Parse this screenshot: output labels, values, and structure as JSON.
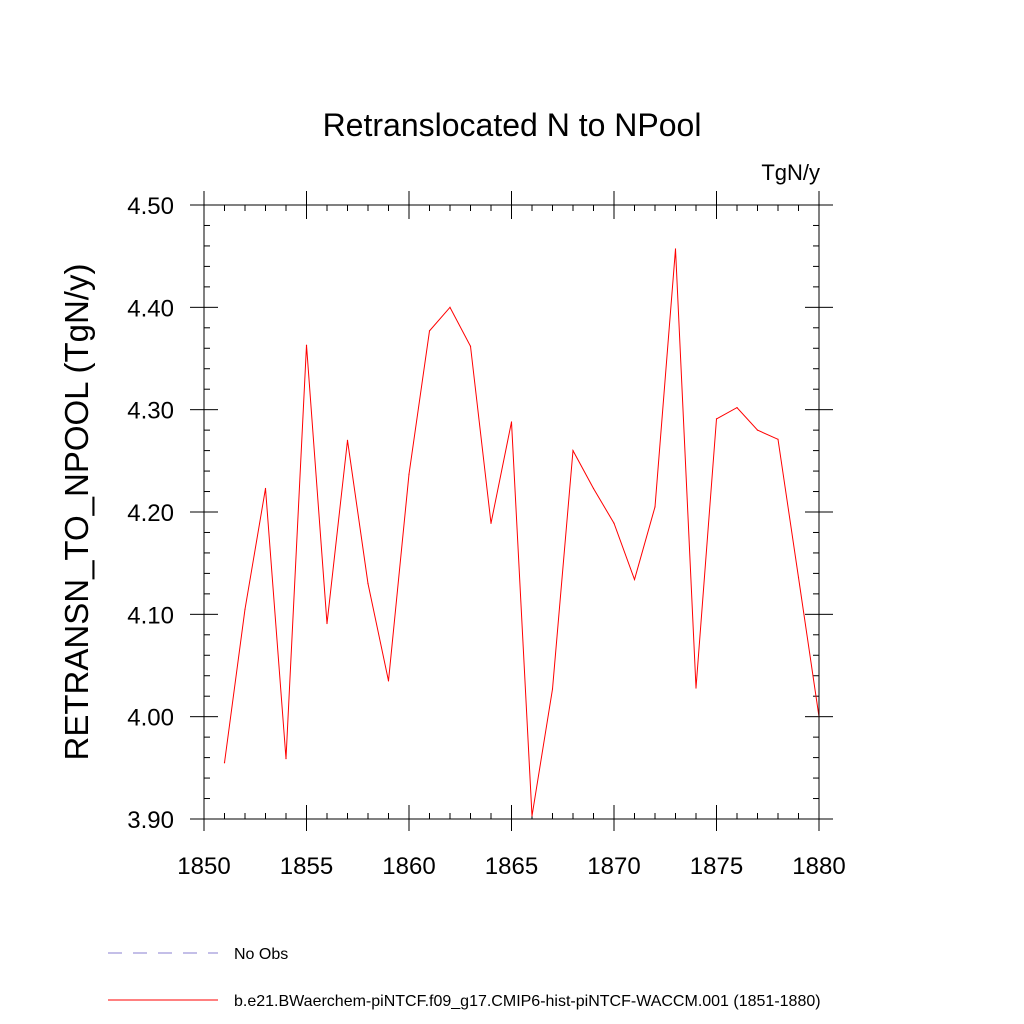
{
  "chart_data": {
    "type": "line",
    "title": "Retranslocated N to NPool",
    "units": "TgN/y",
    "ylabel": "RETRANSN_TO_NPOOL  (TgN/y)",
    "xlim": [
      1850,
      1880
    ],
    "ylim": [
      3.9,
      4.5
    ],
    "xticks": [
      1850,
      1855,
      1860,
      1865,
      1870,
      1875,
      1880
    ],
    "xtick_labels": [
      "1850",
      "1855",
      "1860",
      "1865",
      "1870",
      "1875",
      "1880"
    ],
    "yticks": [
      3.9,
      4.0,
      4.1,
      4.2,
      4.3,
      4.4,
      4.5
    ],
    "ytick_labels": [
      "3.90",
      "4.00",
      "4.10",
      "4.20",
      "4.30",
      "4.40",
      "4.50"
    ],
    "grid": false,
    "legend_position": "bottom-left",
    "series": [
      {
        "name": "b.e21.BWaerchem-piNTCF.f09_g17.CMIP6-hist-piNTCF-WACCM.001 (1851-1880)",
        "color": "#ff0000",
        "dash": "solid",
        "x": [
          1851,
          1852,
          1853,
          1854,
          1855,
          1856,
          1857,
          1858,
          1859,
          1860,
          1861,
          1862,
          1863,
          1864,
          1865,
          1866,
          1867,
          1868,
          1869,
          1870,
          1871,
          1872,
          1873,
          1874,
          1875,
          1876,
          1877,
          1878,
          1879,
          1880
        ],
        "values": [
          3.955,
          4.105,
          4.223,
          3.959,
          4.363,
          4.091,
          4.27,
          4.13,
          4.035,
          4.237,
          4.377,
          4.4,
          4.362,
          4.189,
          4.288,
          3.903,
          4.027,
          4.26,
          4.223,
          4.189,
          4.134,
          4.205,
          4.457,
          4.028,
          4.291,
          4.302,
          4.28,
          4.271,
          4.136,
          4.0
        ]
      }
    ],
    "legend": [
      {
        "label": "No Obs",
        "color": "#8a7fd0",
        "dash": "dashed"
      },
      {
        "label": "b.e21.BWaerchem-piNTCF.f09_g17.CMIP6-hist-piNTCF-WACCM.001 (1851-1880)",
        "color": "#ff0000",
        "dash": "solid"
      }
    ]
  }
}
